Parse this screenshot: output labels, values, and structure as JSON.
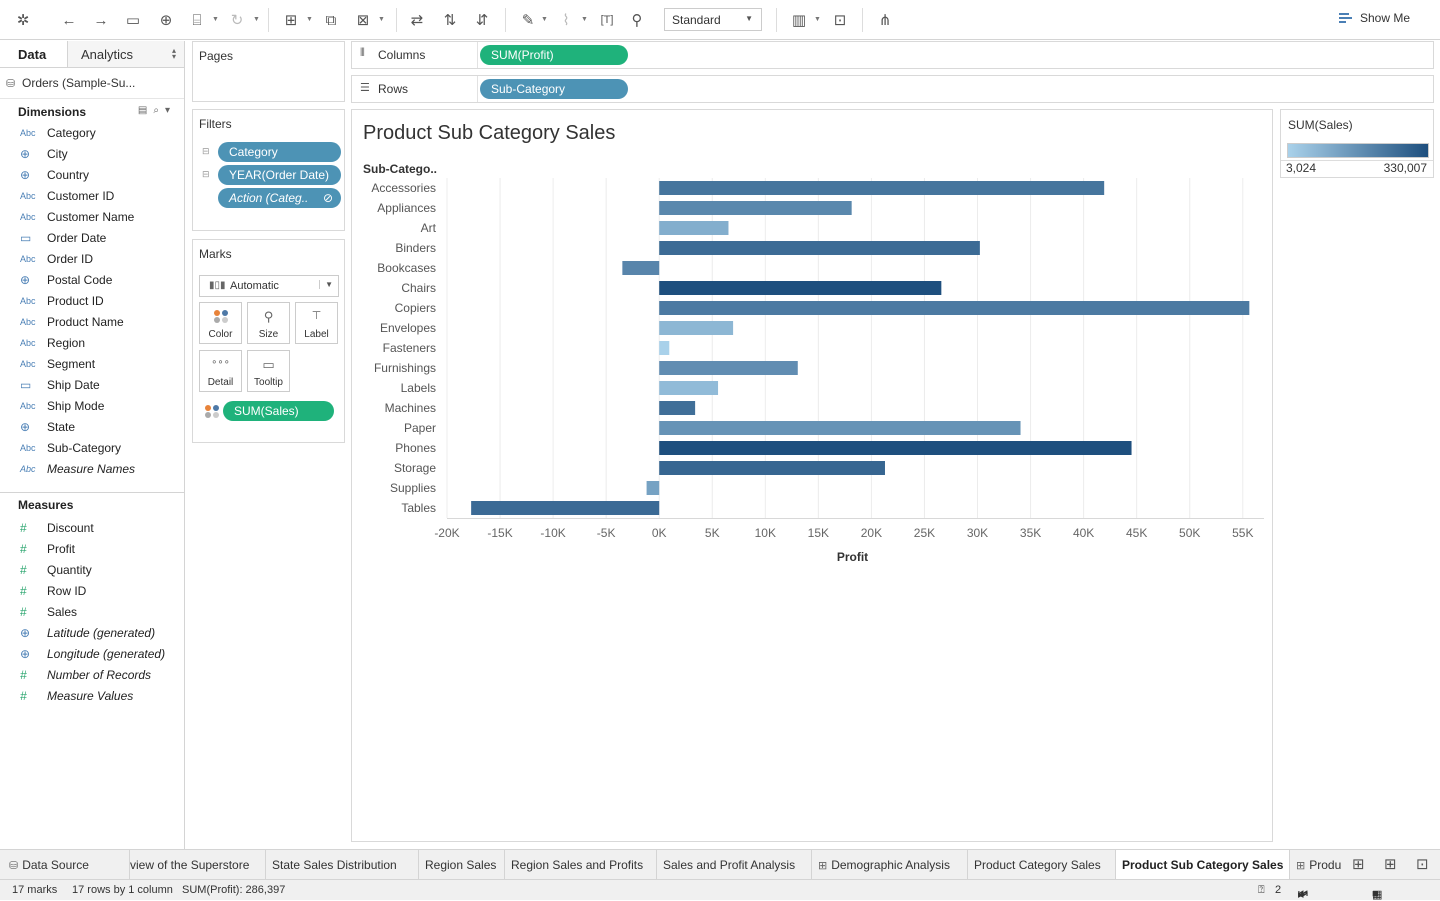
{
  "toolbar": {
    "mark_type_select": "Standard",
    "show_me_label": "Show Me"
  },
  "data_pane": {
    "tab_data": "Data",
    "tab_analytics": "Analytics",
    "datasource": "Orders (Sample-Su...",
    "dimensions_header": "Dimensions",
    "dimensions": [
      {
        "type": "Abc",
        "name": "Category"
      },
      {
        "type": "geo",
        "name": "City"
      },
      {
        "type": "geo",
        "name": "Country"
      },
      {
        "type": "Abc",
        "name": "Customer ID"
      },
      {
        "type": "Abc",
        "name": "Customer Name"
      },
      {
        "type": "date",
        "name": "Order Date"
      },
      {
        "type": "Abc",
        "name": "Order ID"
      },
      {
        "type": "geo",
        "name": "Postal Code"
      },
      {
        "type": "Abc",
        "name": "Product ID"
      },
      {
        "type": "Abc",
        "name": "Product Name"
      },
      {
        "type": "Abc",
        "name": "Region"
      },
      {
        "type": "Abc",
        "name": "Segment"
      },
      {
        "type": "date",
        "name": "Ship Date"
      },
      {
        "type": "Abc",
        "name": "Ship Mode"
      },
      {
        "type": "geo",
        "name": "State"
      },
      {
        "type": "Abc",
        "name": "Sub-Category"
      },
      {
        "type": "Abc",
        "name": "Measure Names",
        "italic": true
      }
    ],
    "measures_header": "Measures",
    "measures": [
      {
        "type": "num",
        "name": "Discount"
      },
      {
        "type": "num",
        "name": "Profit"
      },
      {
        "type": "num",
        "name": "Quantity"
      },
      {
        "type": "num",
        "name": "Row ID"
      },
      {
        "type": "num",
        "name": "Sales"
      },
      {
        "type": "geo",
        "name": "Latitude (generated)",
        "italic": true
      },
      {
        "type": "geo",
        "name": "Longitude (generated)",
        "italic": true
      },
      {
        "type": "num",
        "name": "Number of Records",
        "italic": true
      },
      {
        "type": "num",
        "name": "Measure Values",
        "italic": true
      }
    ]
  },
  "pages": {
    "title": "Pages"
  },
  "filters": {
    "title": "Filters",
    "pills": [
      "Category",
      "YEAR(Order Date)",
      "Action (Categ.."
    ]
  },
  "marks": {
    "title": "Marks",
    "type": "Automatic",
    "buttons": [
      "Color",
      "Size",
      "Label",
      "Detail",
      "Tooltip"
    ],
    "pill": "SUM(Sales)"
  },
  "columns": {
    "label": "Columns",
    "pill": "SUM(Profit)"
  },
  "rows": {
    "label": "Rows",
    "pill": "Sub-Category"
  },
  "viz": {
    "title": "Product Sub Category Sales"
  },
  "legend": {
    "title": "SUM(Sales)",
    "min": "3,024",
    "max": "330,007"
  },
  "colors": {
    "ramp_low": "#a9d1ea",
    "ramp_high": "#1e4f7e",
    "pill_blue": "#4d93b5",
    "pill_green": "#1fb27b"
  },
  "chart_data": {
    "type": "bar",
    "orientation": "horizontal",
    "title": "Product Sub Category Sales",
    "xlabel": "Profit",
    "row_header": "Sub-Catego..",
    "xlim": [
      -20000,
      57000
    ],
    "xticks": [
      "-20K",
      "-15K",
      "-10K",
      "-5K",
      "0K",
      "5K",
      "10K",
      "15K",
      "20K",
      "25K",
      "30K",
      "35K",
      "40K",
      "45K",
      "50K",
      "55K"
    ],
    "xtick_values": [
      -20000,
      -15000,
      -10000,
      -5000,
      0,
      5000,
      10000,
      15000,
      20000,
      25000,
      30000,
      35000,
      40000,
      45000,
      50000,
      55000
    ],
    "categories": [
      "Accessories",
      "Appliances",
      "Art",
      "Binders",
      "Bookcases",
      "Chairs",
      "Copiers",
      "Envelopes",
      "Fasteners",
      "Furnishings",
      "Labels",
      "Machines",
      "Paper",
      "Phones",
      "Storage",
      "Supplies",
      "Tables"
    ],
    "values": [
      41937,
      18138,
      6528,
      30222,
      -3473,
      26590,
      55618,
      6964,
      950,
      13059,
      5546,
      3385,
      34054,
      44516,
      21279,
      -1189,
      -17725
    ],
    "color_by": "SUM(Sales)",
    "color_values": [
      167380,
      107532,
      27119,
      203413,
      114880,
      328449,
      149528,
      16476,
      3024,
      91705,
      12486,
      189239,
      78479,
      330007,
      223844,
      46674,
      206966
    ],
    "legend": "top-right",
    "grid": true
  },
  "sheet_tabs": [
    {
      "label": "Data Source",
      "icon": "datasource-icon"
    },
    {
      "label": "view of the Superstore"
    },
    {
      "label": "State Sales Distribution"
    },
    {
      "label": "Region Sales"
    },
    {
      "label": "Region Sales and Profits"
    },
    {
      "label": "Sales and Profit Analysis"
    },
    {
      "label": "Demographic Analysis",
      "icon": "dashboard-icon"
    },
    {
      "label": "Product Category Sales"
    },
    {
      "label": "Product Sub Category Sales",
      "active": true
    },
    {
      "label": "Produ",
      "icon": "dashboard-icon"
    }
  ],
  "status": {
    "marks": "17 marks",
    "rows_cols": "17 rows by 1 column",
    "sum": "SUM(Profit): 286,397",
    "page": "2"
  }
}
